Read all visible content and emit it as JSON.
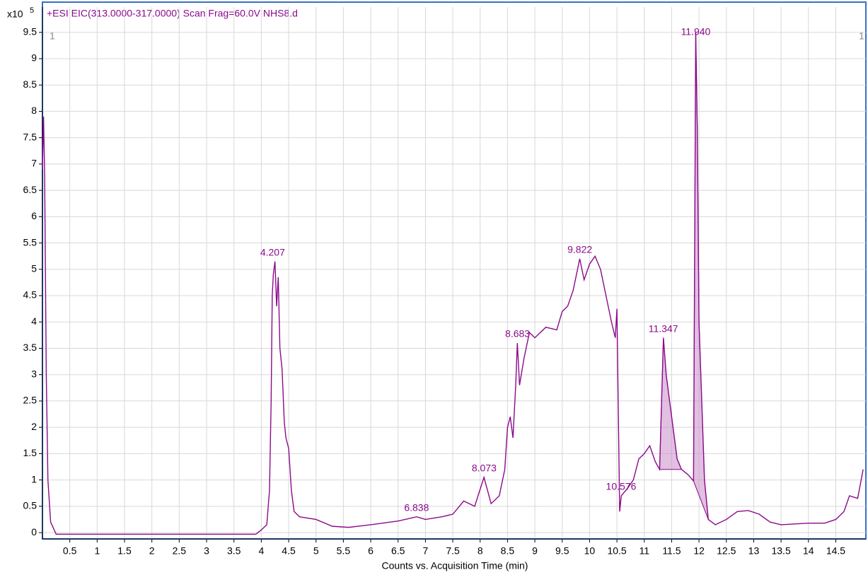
{
  "chart_data": {
    "type": "line",
    "title": "+ESI EIC(313.0000-317.0000) Scan Frag=60.0V NHS8.d",
    "x_label": "Counts vs. Acquisition Time (min)",
    "y_multiplier": "x10",
    "y_exponent": "5",
    "corner_labels": [
      "1",
      "1"
    ],
    "xlim": [
      0,
      15.05
    ],
    "ylim": [
      -0.12,
      9.98
    ],
    "xticks": [
      0.5,
      1,
      1.5,
      2,
      2.5,
      3,
      3.5,
      4,
      4.5,
      5,
      5.5,
      6,
      6.5,
      7,
      7.5,
      8,
      8.5,
      9,
      9.5,
      10,
      10.5,
      11,
      11.5,
      12,
      12.5,
      13,
      13.5,
      14,
      14.5
    ],
    "yticks": [
      0,
      0.5,
      1,
      1.5,
      2,
      2.5,
      3,
      3.5,
      4,
      4.5,
      5,
      5.5,
      6,
      6.5,
      7,
      7.5,
      8,
      8.5,
      9,
      9.5
    ],
    "grid": true,
    "series": [
      {
        "color": "#8b0a8b",
        "x": [
          0.0,
          0.02,
          0.04,
          0.07,
          0.1,
          0.15,
          0.25,
          3.9,
          4.0,
          4.1,
          4.15,
          4.18,
          4.2,
          4.22,
          4.25,
          4.28,
          4.31,
          4.34,
          4.38,
          4.42,
          4.45,
          4.5,
          4.55,
          4.6,
          4.7,
          5.0,
          5.3,
          5.6,
          6.0,
          6.5,
          6.84,
          7.0,
          7.3,
          7.5,
          7.7,
          7.9,
          8.07,
          8.2,
          8.35,
          8.45,
          8.5,
          8.55,
          8.6,
          8.65,
          8.68,
          8.72,
          8.8,
          8.9,
          9.0,
          9.2,
          9.4,
          9.5,
          9.6,
          9.7,
          9.82,
          9.9,
          10.0,
          10.1,
          10.2,
          10.3,
          10.4,
          10.47,
          10.5,
          10.55,
          10.58,
          10.7,
          10.8,
          10.9,
          11.0,
          11.1,
          11.2,
          11.28,
          11.35,
          11.4,
          11.5,
          11.6,
          11.68,
          11.8,
          11.9,
          11.94,
          11.97,
          12.0,
          12.1,
          12.17,
          12.3,
          12.5,
          12.7,
          12.9,
          13.1,
          13.3,
          13.5,
          14.0,
          14.3,
          14.5,
          14.65,
          14.75,
          14.9,
          15.0
        ],
        "values": [
          6.9,
          7.9,
          6.8,
          3.0,
          1.0,
          0.2,
          -0.03,
          -0.03,
          0.05,
          0.15,
          0.8,
          2.5,
          4.5,
          4.9,
          5.15,
          4.3,
          4.85,
          3.5,
          3.1,
          2.1,
          1.8,
          1.6,
          0.8,
          0.4,
          0.3,
          0.25,
          0.12,
          0.1,
          0.15,
          0.22,
          0.3,
          0.25,
          0.3,
          0.35,
          0.6,
          0.5,
          1.05,
          0.55,
          0.7,
          1.2,
          2.0,
          2.2,
          1.8,
          2.8,
          3.6,
          2.8,
          3.3,
          3.8,
          3.7,
          3.9,
          3.85,
          4.2,
          4.3,
          4.6,
          5.2,
          4.8,
          5.1,
          5.25,
          5.0,
          4.5,
          4.0,
          3.7,
          4.25,
          0.4,
          0.7,
          0.85,
          1.0,
          1.4,
          1.5,
          1.65,
          1.35,
          1.2,
          3.7,
          3.0,
          2.2,
          1.4,
          1.2,
          1.1,
          0.98,
          9.5,
          7.6,
          4.0,
          1.0,
          0.25,
          0.15,
          0.25,
          0.4,
          0.42,
          0.35,
          0.2,
          0.15,
          0.18,
          0.18,
          0.25,
          0.4,
          0.7,
          0.65,
          1.2
        ]
      }
    ],
    "integrated_regions": [
      {
        "x_start": 11.28,
        "x_end": 11.68
      },
      {
        "x_start": 11.9,
        "x_end": 12.17
      }
    ],
    "annotations": [
      {
        "x": 4.207,
        "label": "4.207"
      },
      {
        "x": 6.838,
        "label": "6.838"
      },
      {
        "x": 8.073,
        "label": "8.073"
      },
      {
        "x": 8.683,
        "label": "8.683"
      },
      {
        "x": 9.822,
        "label": "9.822"
      },
      {
        "x": 10.576,
        "label": "10.576"
      },
      {
        "x": 11.347,
        "label": "11.347"
      },
      {
        "x": 11.94,
        "label": "11.940"
      }
    ]
  }
}
